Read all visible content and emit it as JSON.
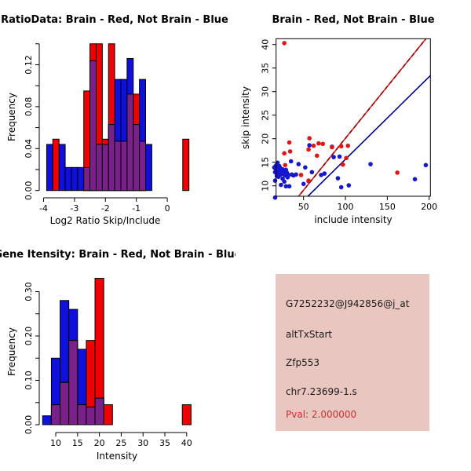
{
  "canvas": {
    "bg": "#ffffff"
  },
  "chart_data": [
    {
      "type": "bar",
      "subtype": "overlaid-histogram",
      "panel": "top-left",
      "title": "RatioData: Brain - Red, Not Brain - Blue",
      "xlabel": "Log2 Ratio Skip/Include",
      "ylabel": "Frequency",
      "x_ticks": [
        -4,
        -3,
        -2,
        -1,
        0
      ],
      "y_ticks": [
        0,
        0.02,
        0.04,
        0.06,
        0.08,
        0.1,
        0.12,
        0.14
      ],
      "y_labeled_ticks": [
        0,
        0.04,
        0.08,
        0.12
      ],
      "ylim": [
        0,
        0.14
      ],
      "bin_width": 0.2,
      "bins_format": "[bin_start, blue_freq_not_brain, red_freq_brain]",
      "bins": [
        [
          -3.9,
          0.044,
          0
        ],
        [
          -3.7,
          0,
          0.049
        ],
        [
          -3.5,
          0.044,
          0
        ],
        [
          -3.3,
          0.022,
          0
        ],
        [
          -3.1,
          0.022,
          0
        ],
        [
          -2.9,
          0.022,
          0
        ],
        [
          -2.7,
          0.022,
          0.095
        ],
        [
          -2.5,
          0.124,
          0.14
        ],
        [
          -2.3,
          0.044,
          0.14
        ],
        [
          -2.1,
          0.044,
          0.049
        ],
        [
          -1.9,
          0.063,
          0.14
        ],
        [
          -1.7,
          0.106,
          0.047
        ],
        [
          -1.5,
          0.106,
          0.047
        ],
        [
          -1.3,
          0.126,
          0.092
        ],
        [
          -1.1,
          0.063,
          0.092
        ],
        [
          -0.9,
          0.106,
          0.047
        ],
        [
          -0.7,
          0.044,
          0
        ],
        [
          0.5,
          0,
          0.049
        ]
      ],
      "colors": {
        "blue": "#1010dc",
        "red": "#f00000",
        "overlap": "#7a2189",
        "axis": "#000000"
      }
    },
    {
      "type": "scatter",
      "panel": "top-right",
      "title": "Brain - Red, Not Brain - Blue",
      "xlabel": "include intensity",
      "ylabel": "skip intensity",
      "x_ticks": [
        50,
        100,
        150,
        200
      ],
      "y_ticks": [
        10,
        15,
        20,
        25,
        30,
        35,
        40
      ],
      "xlim": [
        13,
        202
      ],
      "ylim": [
        7.7,
        41.3
      ],
      "red_points": [
        [
          27,
          40.3
        ],
        [
          33,
          19.2
        ],
        [
          34,
          17.3
        ],
        [
          27,
          16.9
        ],
        [
          28,
          14.4
        ],
        [
          57,
          20.1
        ],
        [
          56,
          17.7
        ],
        [
          62,
          18.5
        ],
        [
          68,
          19.0
        ],
        [
          73,
          18.9
        ],
        [
          66,
          16.4
        ],
        [
          84,
          18.2
        ],
        [
          95,
          18.4
        ],
        [
          103,
          18.5
        ],
        [
          101,
          15.9
        ],
        [
          97,
          14.5
        ],
        [
          162,
          12.8
        ],
        [
          47,
          12.3
        ],
        [
          56,
          11.1
        ]
      ],
      "blue_points": [
        [
          15,
          13.9
        ],
        [
          16,
          12.9
        ],
        [
          16,
          11.1
        ],
        [
          17,
          14.3
        ],
        [
          17,
          13.3
        ],
        [
          18,
          12.1
        ],
        [
          18,
          13.7
        ],
        [
          19,
          14.9
        ],
        [
          19,
          12.7
        ],
        [
          20,
          13.4
        ],
        [
          20,
          11.9
        ],
        [
          21,
          14.2
        ],
        [
          21,
          13.0
        ],
        [
          22,
          12.3
        ],
        [
          22,
          13.8
        ],
        [
          23,
          13.2
        ],
        [
          23,
          10.2
        ],
        [
          24,
          12.8
        ],
        [
          25,
          13.5
        ],
        [
          25,
          11.5
        ],
        [
          26,
          12.5
        ],
        [
          27,
          13.1
        ],
        [
          27,
          10.9
        ],
        [
          28,
          12.2
        ],
        [
          29,
          13.4
        ],
        [
          29,
          9.9
        ],
        [
          30,
          12.8
        ],
        [
          31,
          11.8
        ],
        [
          32,
          12.3
        ],
        [
          33,
          9.9
        ],
        [
          35,
          15.2
        ],
        [
          36,
          12.4
        ],
        [
          38,
          12.2
        ],
        [
          41,
          12.4
        ],
        [
          16,
          7.5
        ],
        [
          44,
          14.6
        ],
        [
          50,
          10.4
        ],
        [
          52,
          13.9
        ],
        [
          56,
          11.0
        ],
        [
          57,
          18.6
        ],
        [
          60,
          12.9
        ],
        [
          71,
          12.3
        ],
        [
          75,
          12.6
        ],
        [
          84,
          18.3
        ],
        [
          86,
          16.1
        ],
        [
          91,
          11.6
        ],
        [
          93,
          16.2
        ],
        [
          95,
          9.7
        ],
        [
          104,
          10.1
        ],
        [
          130,
          14.6
        ],
        [
          183,
          11.4
        ],
        [
          196,
          14.4
        ]
      ],
      "line_red": {
        "x1": 36,
        "y1": 6,
        "x2": 196,
        "y2": 41.2,
        "style": "dashed"
      },
      "line_blue": {
        "x1": 45,
        "y1": 6,
        "x2": 202,
        "y2": 33.5,
        "style": "solid"
      },
      "colors": {
        "red_point": "#e01616",
        "blue_point": "#1616cf",
        "red_line": "#cc2020",
        "red_line_dash": "#8b0000",
        "blue_line": "#00008b",
        "axis": "#000000"
      }
    },
    {
      "type": "bar",
      "subtype": "overlaid-histogram",
      "panel": "bottom-left",
      "title": "Gene Itensity: Brain - Red, Not Brain - Blue",
      "xlabel": "Intensity",
      "ylabel": "Frequency",
      "x_ticks": [
        10,
        15,
        20,
        25,
        30,
        35,
        40
      ],
      "y_ticks": [
        0,
        0.05,
        0.1,
        0.15,
        0.2,
        0.25,
        0.3
      ],
      "y_labeled_ticks": [
        0,
        0.1,
        0.2,
        0.3
      ],
      "ylim": [
        0,
        0.335
      ],
      "bin_width": 2,
      "bins_format": "[bin_start, blue_freq_not_brain, red_freq_brain]",
      "bins": [
        [
          7,
          0.02,
          0
        ],
        [
          9,
          0.15,
          0.045
        ],
        [
          11,
          0.28,
          0.095
        ],
        [
          13,
          0.26,
          0.19
        ],
        [
          15,
          0.17,
          0.045
        ],
        [
          17,
          0.04,
          0.19
        ],
        [
          19,
          0.06,
          0.33
        ],
        [
          21,
          0,
          0.045
        ],
        [
          39,
          0,
          0.045
        ]
      ],
      "colors": {
        "blue": "#1010dc",
        "red": "#f00000",
        "overlap": "#7a2189",
        "axis": "#000000"
      }
    }
  ],
  "info_box": {
    "bg": "#e9c6bf",
    "lines": [
      {
        "text": "G7252232@J942856@j_at",
        "color": "#1a1a1a"
      },
      {
        "text": "altTxStart",
        "color": "#1a1a1a"
      },
      {
        "text": "Zfp553",
        "color": "#1a1a1a"
      },
      {
        "text": "chr7.23699-1.s",
        "color": "#1a1a1a"
      },
      {
        "text": "Pval: 2.000000",
        "color": "#c03030"
      }
    ]
  }
}
